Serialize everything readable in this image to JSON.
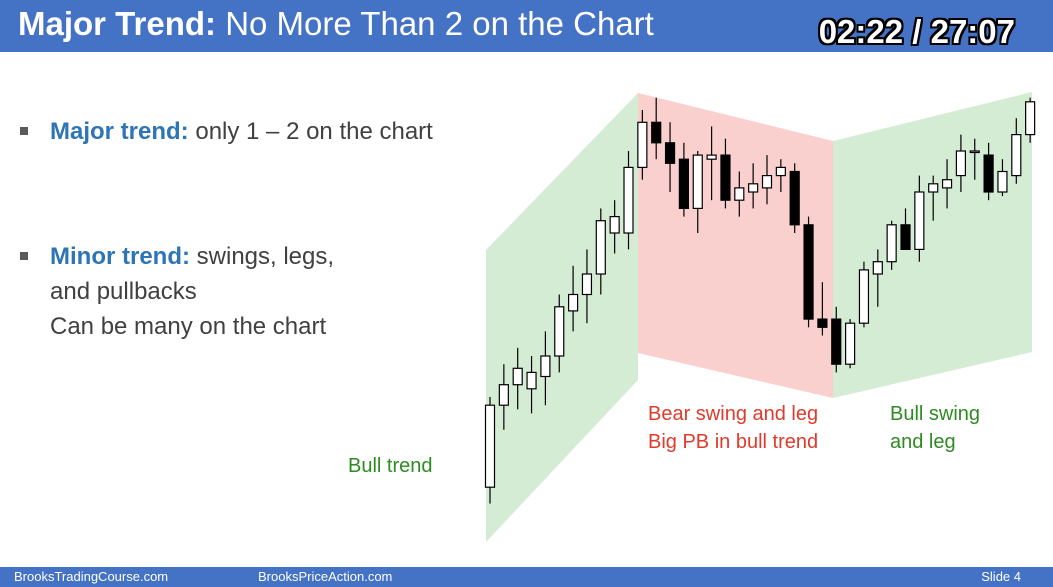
{
  "header": {
    "title_bold": "Major Trend:",
    "title_rest": " No More Than 2 on the Chart",
    "timer": "02:22 / 27:07"
  },
  "bullets": [
    {
      "keyword": "Major trend:",
      "text": " only 1 – 2 on the chart",
      "extra": []
    },
    {
      "keyword": "Minor trend:",
      "text": " swings, legs,",
      "extra": [
        "and pullbacks",
        "Can be many on the chart"
      ]
    }
  ],
  "labels": {
    "bull_trend": "Bull trend",
    "bear_swing": [
      "Bear swing and leg",
      "Big PB in bull trend"
    ],
    "bull_swing": [
      "Bull swing",
      "and leg"
    ]
  },
  "colors": {
    "header": "#4472c4",
    "keyword": "#2e75b6",
    "green_zone": "#d5ecd4",
    "red_zone": "#f9d0cd",
    "green_text": "#2e8b22",
    "red_text": "#e03a2b"
  },
  "chart_data": {
    "type": "candlestick",
    "zones": [
      "bull trend",
      "bear swing",
      "bull swing"
    ],
    "candles": [
      {
        "o": 0.08,
        "h": 0.3,
        "l": 0.04,
        "c": 0.28
      },
      {
        "o": 0.28,
        "h": 0.38,
        "l": 0.22,
        "c": 0.33
      },
      {
        "o": 0.33,
        "h": 0.42,
        "l": 0.27,
        "c": 0.37
      },
      {
        "o": 0.32,
        "h": 0.4,
        "l": 0.26,
        "c": 0.36
      },
      {
        "o": 0.35,
        "h": 0.46,
        "l": 0.28,
        "c": 0.4
      },
      {
        "o": 0.4,
        "h": 0.55,
        "l": 0.36,
        "c": 0.52
      },
      {
        "o": 0.51,
        "h": 0.62,
        "l": 0.46,
        "c": 0.55
      },
      {
        "o": 0.55,
        "h": 0.66,
        "l": 0.48,
        "c": 0.6
      },
      {
        "o": 0.6,
        "h": 0.76,
        "l": 0.55,
        "c": 0.73
      },
      {
        "o": 0.7,
        "h": 0.78,
        "l": 0.65,
        "c": 0.74
      },
      {
        "o": 0.7,
        "h": 0.9,
        "l": 0.66,
        "c": 0.86
      },
      {
        "o": 0.86,
        "h": 1.0,
        "l": 0.83,
        "c": 0.97
      },
      {
        "o": 0.97,
        "h": 1.03,
        "l": 0.88,
        "c": 0.92
      },
      {
        "o": 0.92,
        "h": 0.97,
        "l": 0.8,
        "c": 0.87
      },
      {
        "o": 0.88,
        "h": 0.92,
        "l": 0.74,
        "c": 0.76
      },
      {
        "o": 0.76,
        "h": 0.9,
        "l": 0.7,
        "c": 0.89
      },
      {
        "o": 0.88,
        "h": 0.96,
        "l": 0.78,
        "c": 0.89
      },
      {
        "o": 0.89,
        "h": 0.93,
        "l": 0.76,
        "c": 0.78
      },
      {
        "o": 0.78,
        "h": 0.85,
        "l": 0.74,
        "c": 0.81
      },
      {
        "o": 0.8,
        "h": 0.87,
        "l": 0.76,
        "c": 0.82
      },
      {
        "o": 0.81,
        "h": 0.89,
        "l": 0.77,
        "c": 0.84
      },
      {
        "o": 0.84,
        "h": 0.88,
        "l": 0.8,
        "c": 0.86
      },
      {
        "o": 0.85,
        "h": 0.87,
        "l": 0.7,
        "c": 0.72
      },
      {
        "o": 0.72,
        "h": 0.74,
        "l": 0.47,
        "c": 0.49
      },
      {
        "o": 0.49,
        "h": 0.58,
        "l": 0.45,
        "c": 0.47
      },
      {
        "o": 0.49,
        "h": 0.52,
        "l": 0.36,
        "c": 0.38
      },
      {
        "o": 0.38,
        "h": 0.49,
        "l": 0.37,
        "c": 0.48
      },
      {
        "o": 0.48,
        "h": 0.63,
        "l": 0.47,
        "c": 0.61
      },
      {
        "o": 0.6,
        "h": 0.66,
        "l": 0.52,
        "c": 0.63
      },
      {
        "o": 0.63,
        "h": 0.73,
        "l": 0.61,
        "c": 0.72
      },
      {
        "o": 0.72,
        "h": 0.76,
        "l": 0.66,
        "c": 0.66
      },
      {
        "o": 0.66,
        "h": 0.84,
        "l": 0.63,
        "c": 0.8
      },
      {
        "o": 0.8,
        "h": 0.84,
        "l": 0.73,
        "c": 0.82
      },
      {
        "o": 0.81,
        "h": 0.88,
        "l": 0.76,
        "c": 0.83
      },
      {
        "o": 0.84,
        "h": 0.94,
        "l": 0.8,
        "c": 0.9
      },
      {
        "o": 0.9,
        "h": 0.93,
        "l": 0.83,
        "c": 0.9
      },
      {
        "o": 0.89,
        "h": 0.92,
        "l": 0.78,
        "c": 0.8
      },
      {
        "o": 0.8,
        "h": 0.88,
        "l": 0.79,
        "c": 0.85
      },
      {
        "o": 0.84,
        "h": 0.98,
        "l": 0.82,
        "c": 0.94
      },
      {
        "o": 0.94,
        "h": 1.03,
        "l": 0.92,
        "c": 1.02
      }
    ]
  },
  "footer": {
    "left": "BrooksTradingCourse.com",
    "center": "BrooksPriceAction.com",
    "right": "Slide  4"
  }
}
